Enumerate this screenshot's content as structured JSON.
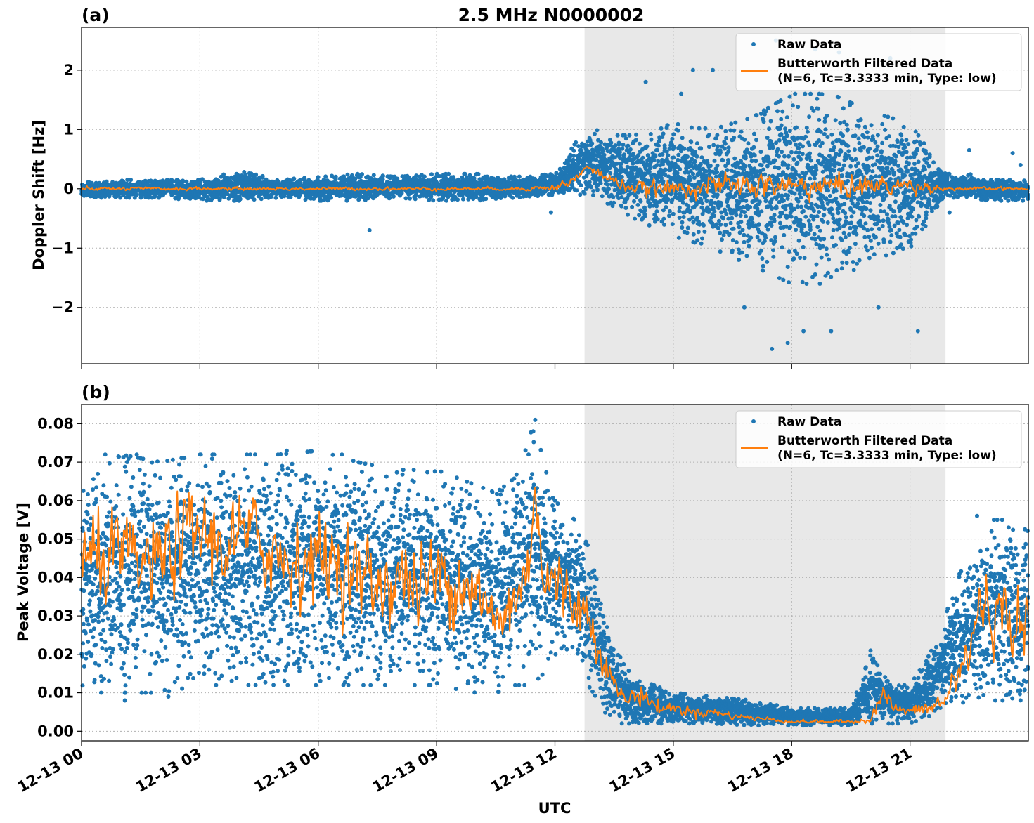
{
  "figure_title": "2.5 MHz N0000002",
  "colors": {
    "raw": "#1f77b4",
    "filtered": "#ff7f0e",
    "shade": "#e8e8e8",
    "grid": "#b0b0b0"
  },
  "x_axis": {
    "label": "UTC",
    "ticks_hours": [
      0,
      3,
      6,
      9,
      12,
      15,
      18,
      21
    ],
    "tick_labels": [
      "12-13 00",
      "12-13 03",
      "12-13 06",
      "12-13 09",
      "12-13 12",
      "12-13 15",
      "12-13 18",
      "12-13 21"
    ],
    "range_hours": [
      0,
      24
    ]
  },
  "legend": {
    "raw_label": "Raw Data",
    "filtered_label_line1": "Butterworth Filtered Data",
    "filtered_label_line2": "(N=6, Tc=3.3333 min, Type: low)",
    "placement": "upper-right"
  },
  "chart_data": [
    {
      "type": "scatter",
      "panel_label": "(a)",
      "ylabel": "Doppler Shift [Hz]",
      "ylim": [
        -2.95,
        2.72
      ],
      "yticks": [
        -2,
        -1,
        0,
        1,
        2
      ],
      "ytick_labels": [
        "−2",
        "−1",
        "0",
        "1",
        "2"
      ],
      "grid": true,
      "shaded_interval_hours": [
        12.75,
        21.9
      ],
      "raw_envelope": {
        "x": [
          0,
          1,
          2,
          3,
          4,
          5,
          6,
          7,
          8,
          9,
          10,
          11,
          12,
          12.75,
          13,
          13.5,
          14,
          15,
          16,
          17,
          18,
          19,
          20,
          21,
          21.9,
          22.5,
          23,
          24
        ],
        "upper": [
          0.1,
          0.15,
          0.15,
          0.15,
          0.3,
          0.15,
          0.2,
          0.25,
          0.2,
          0.25,
          0.25,
          0.2,
          0.25,
          1.0,
          1.0,
          0.9,
          0.9,
          1.1,
          1.0,
          1.2,
          1.6,
          1.6,
          1.3,
          1.1,
          0.25,
          0.25,
          0.15,
          0.15
        ],
        "lower": [
          -0.15,
          -0.15,
          -0.15,
          -0.2,
          -0.2,
          -0.15,
          -0.2,
          -0.2,
          -0.15,
          -0.2,
          -0.2,
          -0.15,
          -0.1,
          -0.1,
          -0.15,
          -0.3,
          -0.5,
          -0.8,
          -1.0,
          -1.3,
          -1.6,
          -1.6,
          -1.2,
          -1.0,
          -0.15,
          -0.15,
          -0.2,
          -0.2
        ]
      },
      "filtered": {
        "x": [
          0,
          1,
          2,
          3,
          4,
          5,
          6,
          7,
          8,
          9,
          10,
          11,
          12,
          12.5,
          12.8,
          13,
          13.3,
          13.6,
          14,
          15,
          16,
          17,
          18,
          19,
          20,
          21,
          21.9,
          22,
          23,
          24
        ],
        "y": [
          0.0,
          0.0,
          0.0,
          0.0,
          0.0,
          0.0,
          0.0,
          0.0,
          0.0,
          0.0,
          0.0,
          0.0,
          0.02,
          0.15,
          0.35,
          0.3,
          0.2,
          0.1,
          0.0,
          0.0,
          0.05,
          0.05,
          0.05,
          0.05,
          0.05,
          0.05,
          0.0,
          0.0,
          0.0,
          0.0
        ],
        "noise_amplitude": [
          0.02,
          0.02,
          0.02,
          0.02,
          0.02,
          0.02,
          0.02,
          0.02,
          0.02,
          0.02,
          0.02,
          0.02,
          0.04,
          0.06,
          0.06,
          0.06,
          0.06,
          0.06,
          0.08,
          0.1,
          0.12,
          0.15,
          0.15,
          0.15,
          0.12,
          0.1,
          0.02,
          0.02,
          0.02,
          0.02
        ]
      },
      "outliers": [
        [
          15.5,
          2.0
        ],
        [
          16.0,
          2.0
        ],
        [
          15.2,
          1.6
        ],
        [
          17.6,
          2.5
        ],
        [
          18.6,
          2.35
        ],
        [
          19.2,
          2.3
        ],
        [
          17.9,
          -2.6
        ],
        [
          19.0,
          -2.4
        ],
        [
          17.5,
          -2.7
        ],
        [
          18.3,
          -2.4
        ],
        [
          21.2,
          -2.4
        ],
        [
          16.8,
          -2.0
        ],
        [
          22.5,
          0.65
        ],
        [
          23.6,
          0.6
        ],
        [
          23.8,
          0.4
        ],
        [
          22.0,
          -0.4
        ],
        [
          20.5,
          2.2
        ],
        [
          20.2,
          -2.0
        ],
        [
          14.3,
          1.8
        ],
        [
          7.3,
          -0.7
        ],
        [
          11.9,
          -0.4
        ]
      ]
    },
    {
      "type": "scatter",
      "panel_label": "(b)",
      "ylabel": "Peak Voltage [V]",
      "ylim": [
        -0.0025,
        0.085
      ],
      "yticks": [
        0.0,
        0.01,
        0.02,
        0.03,
        0.04,
        0.05,
        0.06,
        0.07,
        0.08
      ],
      "ytick_labels": [
        "0.00",
        "0.01",
        "0.02",
        "0.03",
        "0.04",
        "0.05",
        "0.06",
        "0.07",
        "0.08"
      ],
      "grid": true,
      "shaded_interval_hours": [
        12.75,
        21.9
      ],
      "raw_envelope": {
        "x": [
          0,
          0.5,
          1,
          2,
          3,
          4,
          5,
          6,
          7,
          8,
          9,
          10,
          10.5,
          11,
          11.5,
          11.7,
          12,
          12.5,
          12.75,
          13,
          13.3,
          13.7,
          14,
          14.5,
          15,
          16,
          17,
          18,
          19,
          19.5,
          20,
          20.5,
          21,
          21.5,
          21.9,
          22.2,
          22.5,
          23,
          23.5,
          24
        ],
        "upper": [
          0.062,
          0.068,
          0.072,
          0.07,
          0.072,
          0.072,
          0.072,
          0.073,
          0.07,
          0.068,
          0.068,
          0.064,
          0.062,
          0.066,
          0.081,
          0.07,
          0.06,
          0.055,
          0.05,
          0.045,
          0.03,
          0.018,
          0.014,
          0.012,
          0.01,
          0.009,
          0.008,
          0.006,
          0.006,
          0.006,
          0.02,
          0.012,
          0.012,
          0.02,
          0.03,
          0.04,
          0.045,
          0.055,
          0.055,
          0.052
        ],
        "lower": [
          0.012,
          0.01,
          0.01,
          0.01,
          0.012,
          0.012,
          0.012,
          0.012,
          0.012,
          0.012,
          0.012,
          0.01,
          0.01,
          0.012,
          0.012,
          0.015,
          0.02,
          0.02,
          0.015,
          0.008,
          0.004,
          0.002,
          0.002,
          0.002,
          0.002,
          0.002,
          0.0015,
          0.0015,
          0.0015,
          0.0015,
          0.002,
          0.002,
          0.002,
          0.004,
          0.006,
          0.007,
          0.008,
          0.008,
          0.008,
          0.008
        ]
      },
      "filtered": {
        "x": [
          0,
          0.5,
          1,
          1.5,
          2,
          2.5,
          3,
          3.5,
          4,
          4.5,
          5,
          5.5,
          6,
          6.5,
          7,
          7.5,
          8,
          8.5,
          9,
          9.5,
          10,
          10.3,
          10.6,
          11,
          11.3,
          11.5,
          11.7,
          12,
          12.3,
          12.6,
          12.9,
          13.2,
          13.5,
          13.8,
          14.2,
          14.6,
          15,
          15.5,
          16,
          16.5,
          17,
          17.5,
          18,
          18.5,
          19,
          19.5,
          20,
          20.3,
          20.6,
          21,
          21.5,
          21.9,
          22.2,
          22.5,
          22.8,
          23.1,
          23.5,
          23.8,
          24
        ],
        "y": [
          0.043,
          0.045,
          0.045,
          0.043,
          0.044,
          0.05,
          0.052,
          0.048,
          0.05,
          0.05,
          0.045,
          0.045,
          0.045,
          0.045,
          0.04,
          0.038,
          0.04,
          0.038,
          0.04,
          0.04,
          0.038,
          0.03,
          0.028,
          0.035,
          0.04,
          0.065,
          0.04,
          0.038,
          0.036,
          0.034,
          0.028,
          0.02,
          0.012,
          0.008,
          0.01,
          0.006,
          0.006,
          0.005,
          0.005,
          0.004,
          0.0035,
          0.003,
          0.0025,
          0.0025,
          0.0025,
          0.0025,
          0.003,
          0.01,
          0.006,
          0.005,
          0.006,
          0.008,
          0.015,
          0.02,
          0.035,
          0.03,
          0.03,
          0.028,
          0.028
        ],
        "noise_amplitude": [
          0.008,
          0.008,
          0.008,
          0.008,
          0.008,
          0.008,
          0.008,
          0.008,
          0.008,
          0.008,
          0.008,
          0.008,
          0.008,
          0.008,
          0.008,
          0.008,
          0.008,
          0.008,
          0.008,
          0.008,
          0.007,
          0.006,
          0.006,
          0.007,
          0.007,
          0.004,
          0.007,
          0.007,
          0.006,
          0.006,
          0.005,
          0.003,
          0.002,
          0.0015,
          0.002,
          0.0015,
          0.001,
          0.001,
          0.0008,
          0.0006,
          0.0005,
          0.0004,
          0.0003,
          0.0003,
          0.0003,
          0.0003,
          0.0005,
          0.002,
          0.001,
          0.001,
          0.0015,
          0.002,
          0.004,
          0.005,
          0.006,
          0.006,
          0.006,
          0.006,
          0.006
        ]
      },
      "outliers": [
        [
          11.5,
          0.081
        ],
        [
          11.45,
          0.078
        ],
        [
          1.4,
          0.072
        ],
        [
          5.2,
          0.073
        ],
        [
          6.6,
          0.072
        ],
        [
          0.6,
          0.072
        ],
        [
          2.2,
          0.009
        ],
        [
          1.1,
          0.008
        ],
        [
          20.0,
          0.021
        ],
        [
          22.7,
          0.056
        ],
        [
          23.5,
          0.053
        ]
      ]
    }
  ]
}
